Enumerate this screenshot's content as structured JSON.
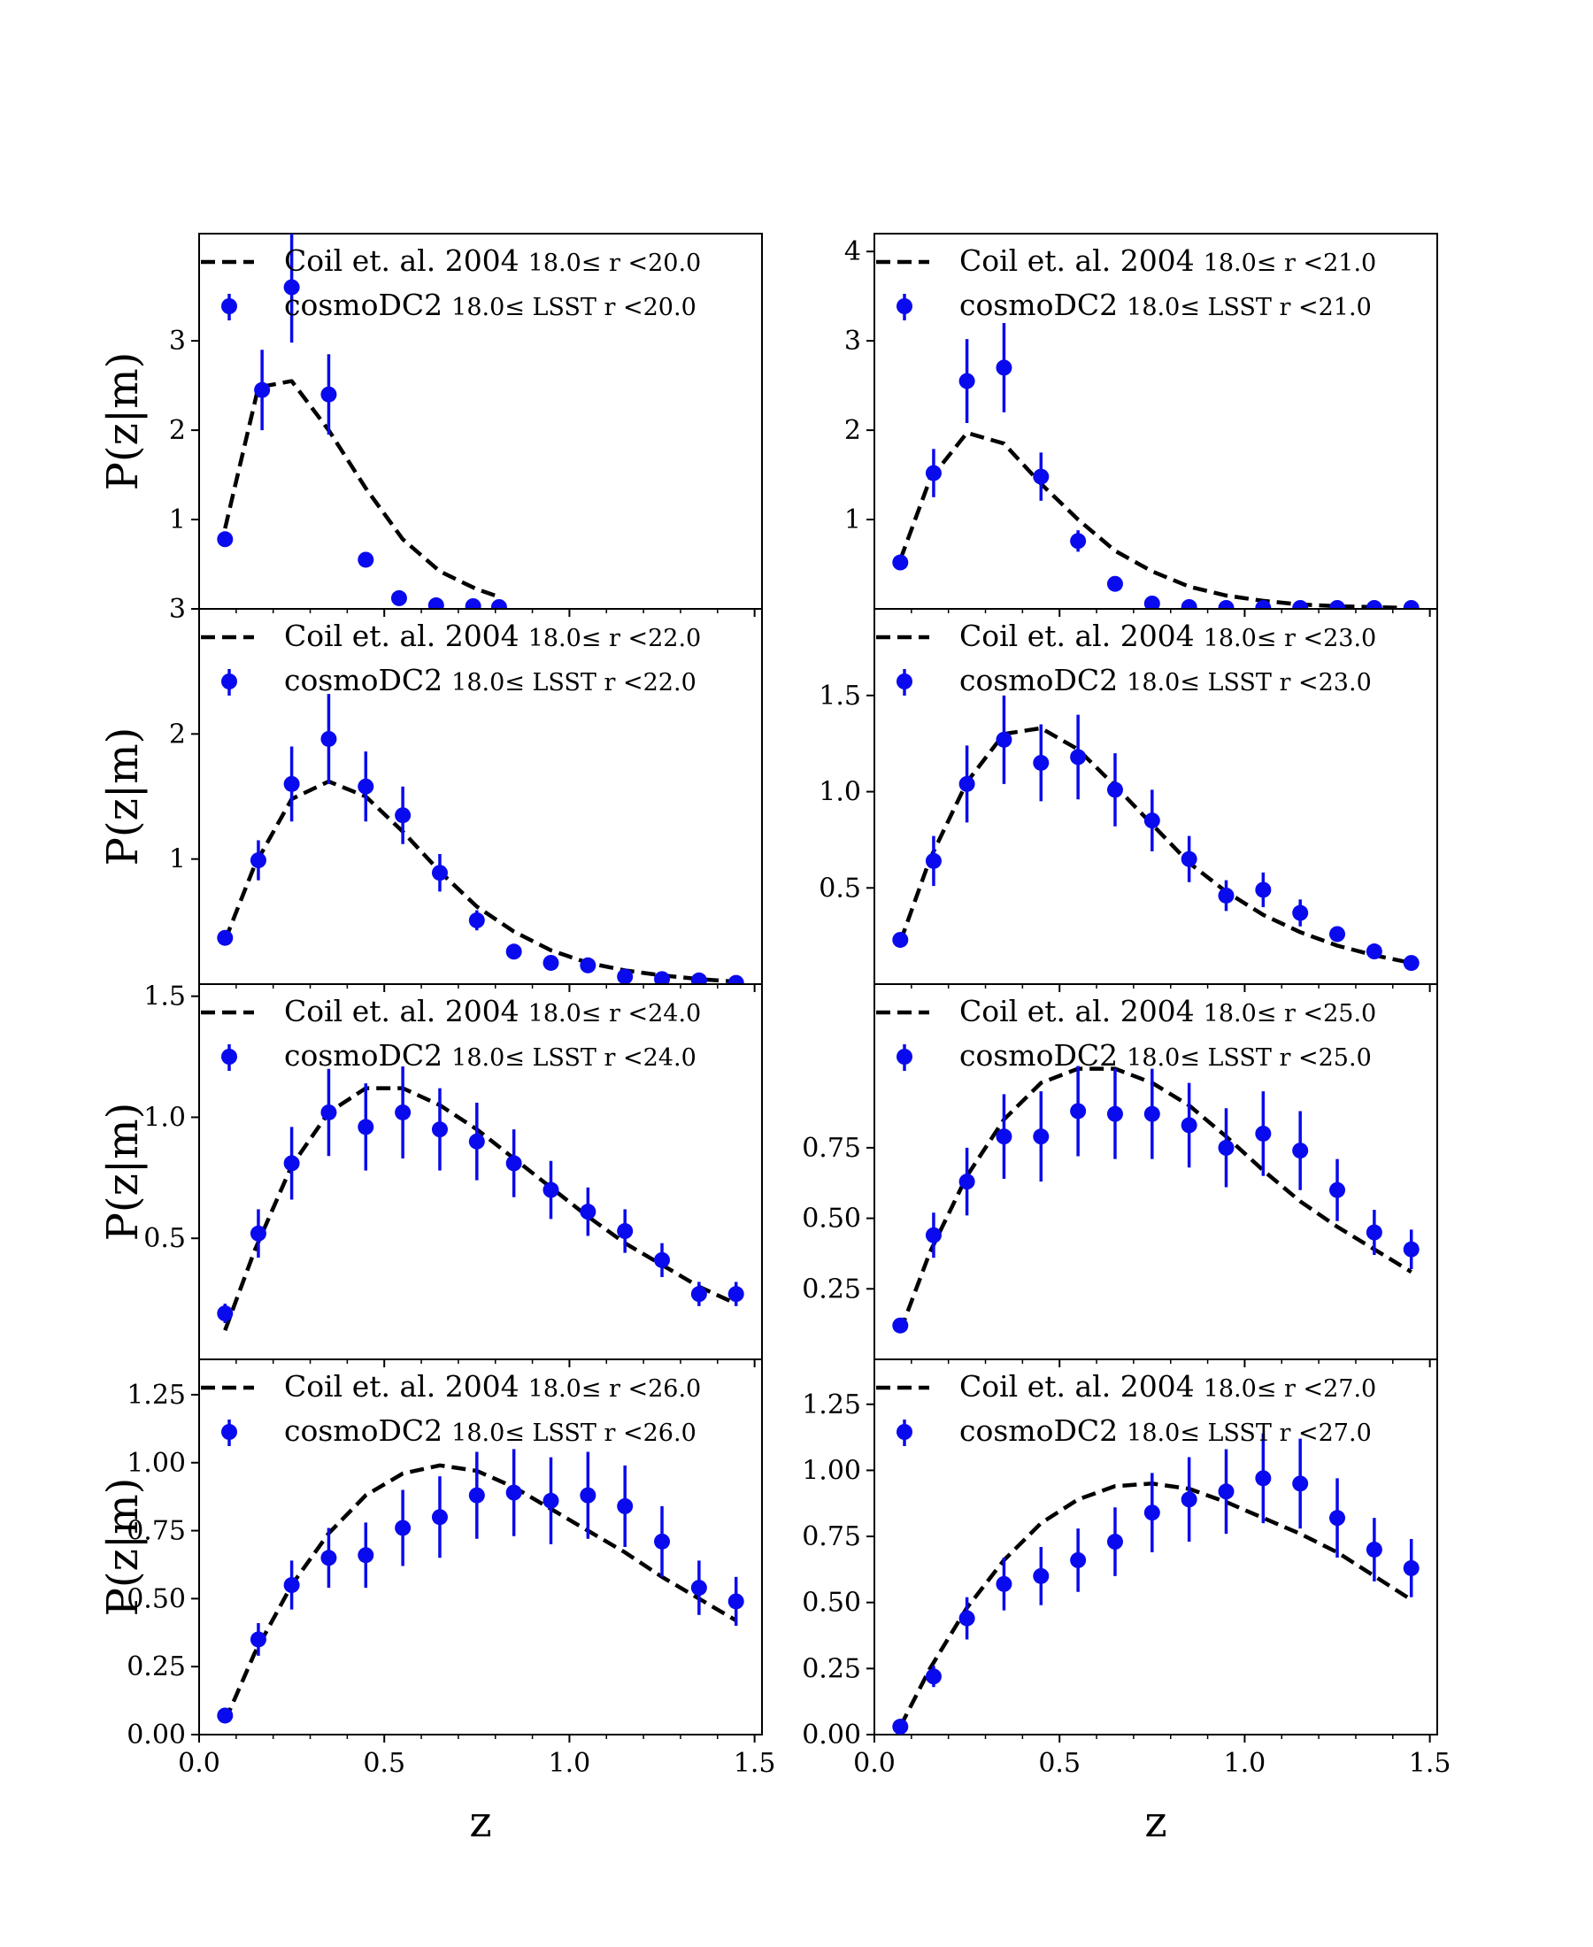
{
  "colors": {
    "model": "#000000",
    "data": "#0a0aee"
  },
  "chart_data": [
    {
      "type": "line+errorbar",
      "ylabel": "P(z|m)",
      "xlabel": "",
      "xlim": [
        0.0,
        1.52
      ],
      "ylim": [
        0.0,
        4.2
      ],
      "yticks": [
        1,
        2,
        3
      ],
      "yticks_text": [
        "1",
        "2",
        "3"
      ],
      "xticks_text": [
        "",
        "",
        "",
        ""
      ],
      "legend": {
        "line_main": "Coil et. al. 2004",
        "line_cut": "18.0≤ r <20.0",
        "points_main": "cosmoDC2",
        "points_cut": "18.0≤ LSST r <20.0"
      },
      "line": {
        "x": [
          0.07,
          0.16,
          0.25,
          0.35,
          0.45,
          0.55,
          0.65,
          0.75,
          0.8
        ],
        "y": [
          0.9,
          2.48,
          2.55,
          2.0,
          1.35,
          0.78,
          0.42,
          0.22,
          0.15
        ]
      },
      "points": {
        "x": [
          0.07,
          0.17,
          0.25,
          0.35,
          0.45,
          0.54,
          0.64,
          0.74,
          0.81
        ],
        "y": [
          0.78,
          2.45,
          3.6,
          2.4,
          0.55,
          0.12,
          0.04,
          0.03,
          0.02
        ],
        "err": [
          0.05,
          0.45,
          0.62,
          0.45,
          0.05,
          0.02,
          0.01,
          0.01,
          0.01
        ]
      }
    },
    {
      "type": "line+errorbar",
      "ylabel": "",
      "xlabel": "",
      "xlim": [
        0.0,
        1.52
      ],
      "ylim": [
        0.0,
        4.2
      ],
      "yticks": [
        1,
        2,
        3,
        4
      ],
      "yticks_text": [
        "1",
        "2",
        "3",
        "4"
      ],
      "xticks_text": [
        "",
        "",
        "",
        ""
      ],
      "legend": {
        "line_main": "Coil et. al. 2004",
        "line_cut": "18.0≤ r <21.0",
        "points_main": "cosmoDC2",
        "points_cut": "18.0≤ LSST r <21.0"
      },
      "line": {
        "x": [
          0.07,
          0.15,
          0.25,
          0.35,
          0.45,
          0.55,
          0.65,
          0.75,
          0.85,
          0.95,
          1.05,
          1.15,
          1.25,
          1.35,
          1.45
        ],
        "y": [
          0.55,
          1.45,
          1.97,
          1.85,
          1.4,
          1.0,
          0.65,
          0.42,
          0.25,
          0.15,
          0.09,
          0.05,
          0.03,
          0.02,
          0.01
        ]
      },
      "points": {
        "x": [
          0.07,
          0.16,
          0.25,
          0.35,
          0.45,
          0.55,
          0.65,
          0.75,
          0.85,
          0.95,
          1.05,
          1.15,
          1.25,
          1.35,
          1.45
        ],
        "y": [
          0.52,
          1.52,
          2.55,
          2.7,
          1.48,
          0.76,
          0.28,
          0.06,
          0.02,
          0.01,
          0.01,
          0.01,
          0.01,
          0.01,
          0.01
        ],
        "err": [
          0.07,
          0.27,
          0.47,
          0.5,
          0.27,
          0.12,
          0.03,
          0.01,
          0.01,
          0.0,
          0.0,
          0.0,
          0.0,
          0.0,
          0.0
        ]
      }
    },
    {
      "type": "line+errorbar",
      "ylabel": "P(z|m)",
      "xlabel": "",
      "xlim": [
        0.0,
        1.52
      ],
      "ylim": [
        0.0,
        3.0
      ],
      "yticks": [
        1,
        2,
        3
      ],
      "yticks_text": [
        "1",
        "2",
        "3"
      ],
      "xticks_text": [
        "",
        "",
        "",
        ""
      ],
      "legend": {
        "line_main": "Coil et. al. 2004",
        "line_cut": "18.0≤ r <22.0",
        "points_main": "cosmoDC2",
        "points_cut": "18.0≤ LSST r <22.0"
      },
      "line": {
        "x": [
          0.07,
          0.15,
          0.25,
          0.35,
          0.45,
          0.55,
          0.65,
          0.75,
          0.85,
          0.95,
          1.05,
          1.15,
          1.25,
          1.35,
          1.45
        ],
        "y": [
          0.35,
          0.95,
          1.48,
          1.62,
          1.5,
          1.22,
          0.9,
          0.62,
          0.42,
          0.27,
          0.17,
          0.11,
          0.07,
          0.04,
          0.02
        ]
      },
      "points": {
        "x": [
          0.07,
          0.16,
          0.25,
          0.35,
          0.45,
          0.55,
          0.65,
          0.75,
          0.85,
          0.95,
          1.05,
          1.15,
          1.25,
          1.35,
          1.45
        ],
        "y": [
          0.37,
          0.99,
          1.6,
          1.96,
          1.58,
          1.35,
          0.89,
          0.51,
          0.26,
          0.17,
          0.15,
          0.06,
          0.04,
          0.03,
          0.01
        ],
        "err": [
          0.05,
          0.16,
          0.3,
          0.36,
          0.28,
          0.23,
          0.15,
          0.08,
          0.03,
          0.02,
          0.02,
          0.01,
          0.01,
          0.01,
          0.0
        ]
      }
    },
    {
      "type": "line+errorbar",
      "ylabel": "",
      "xlabel": "",
      "xlim": [
        0.0,
        1.52
      ],
      "ylim": [
        0.0,
        1.95
      ],
      "yticks": [
        0.5,
        1.0,
        1.5
      ],
      "yticks_text": [
        "0.5",
        "1.0",
        "1.5"
      ],
      "xticks_text": [
        "",
        "",
        "",
        ""
      ],
      "legend": {
        "line_main": "Coil et. al. 2004",
        "line_cut": "18.0≤ r <23.0",
        "points_main": "cosmoDC2",
        "points_cut": "18.0≤ LSST r <23.0"
      },
      "line": {
        "x": [
          0.07,
          0.15,
          0.25,
          0.35,
          0.45,
          0.55,
          0.65,
          0.75,
          0.85,
          0.95,
          1.05,
          1.15,
          1.25,
          1.35,
          1.45
        ],
        "y": [
          0.22,
          0.65,
          1.05,
          1.3,
          1.33,
          1.22,
          1.03,
          0.83,
          0.63,
          0.48,
          0.36,
          0.27,
          0.2,
          0.15,
          0.11
        ]
      },
      "points": {
        "x": [
          0.07,
          0.16,
          0.25,
          0.35,
          0.45,
          0.55,
          0.65,
          0.75,
          0.85,
          0.95,
          1.05,
          1.15,
          1.25,
          1.35,
          1.45
        ],
        "y": [
          0.23,
          0.64,
          1.04,
          1.27,
          1.15,
          1.18,
          1.01,
          0.85,
          0.65,
          0.46,
          0.49,
          0.37,
          0.26,
          0.17,
          0.11
        ],
        "err": [
          0.04,
          0.13,
          0.2,
          0.23,
          0.2,
          0.22,
          0.19,
          0.16,
          0.12,
          0.08,
          0.09,
          0.07,
          0.04,
          0.03,
          0.02
        ]
      }
    },
    {
      "type": "line+errorbar",
      "ylabel": "P(z|m)",
      "xlabel": "",
      "xlim": [
        0.0,
        1.52
      ],
      "ylim": [
        0.0,
        1.55
      ],
      "yticks": [
        0.5,
        1.0,
        1.5
      ],
      "yticks_text": [
        "0.5",
        "1.0",
        "1.5"
      ],
      "xticks_text": [
        "",
        "",
        "",
        ""
      ],
      "legend": {
        "line_main": "Coil et. al. 2004",
        "line_cut": "18.0≤ r <24.0",
        "points_main": "cosmoDC2",
        "points_cut": "18.0≤ LSST r <24.0"
      },
      "line": {
        "x": [
          0.07,
          0.15,
          0.25,
          0.35,
          0.45,
          0.55,
          0.65,
          0.75,
          0.85,
          0.95,
          1.05,
          1.15,
          1.25,
          1.35,
          1.45
        ],
        "y": [
          0.12,
          0.45,
          0.8,
          1.02,
          1.12,
          1.12,
          1.05,
          0.95,
          0.83,
          0.71,
          0.59,
          0.48,
          0.39,
          0.3,
          0.23
        ]
      },
      "points": {
        "x": [
          0.07,
          0.16,
          0.25,
          0.35,
          0.45,
          0.55,
          0.65,
          0.75,
          0.85,
          0.95,
          1.05,
          1.15,
          1.25,
          1.35,
          1.45
        ],
        "y": [
          0.19,
          0.52,
          0.81,
          1.02,
          0.96,
          1.02,
          0.95,
          0.9,
          0.81,
          0.7,
          0.61,
          0.53,
          0.41,
          0.27,
          0.27
        ],
        "err": [
          0.04,
          0.1,
          0.15,
          0.18,
          0.18,
          0.19,
          0.17,
          0.16,
          0.14,
          0.12,
          0.1,
          0.09,
          0.07,
          0.05,
          0.05
        ]
      }
    },
    {
      "type": "line+errorbar",
      "ylabel": "",
      "xlabel": "",
      "xlim": [
        0.0,
        1.52
      ],
      "ylim": [
        0.0,
        1.33
      ],
      "yticks": [
        0.25,
        0.5,
        0.75
      ],
      "yticks_text": [
        "0.25",
        "0.50",
        "0.75"
      ],
      "xticks_text": [
        "",
        "",
        "",
        ""
      ],
      "legend": {
        "line_main": "Coil et. al. 2004",
        "line_cut": "18.0≤ r <25.0",
        "points_main": "cosmoDC2",
        "points_cut": "18.0≤ LSST r <25.0"
      },
      "line": {
        "x": [
          0.07,
          0.15,
          0.25,
          0.35,
          0.45,
          0.55,
          0.65,
          0.75,
          0.85,
          0.95,
          1.05,
          1.15,
          1.25,
          1.35,
          1.45
        ],
        "y": [
          0.1,
          0.38,
          0.65,
          0.85,
          0.98,
          1.03,
          1.03,
          0.98,
          0.9,
          0.79,
          0.67,
          0.56,
          0.47,
          0.39,
          0.31
        ]
      },
      "points": {
        "x": [
          0.07,
          0.16,
          0.25,
          0.35,
          0.45,
          0.55,
          0.65,
          0.75,
          0.85,
          0.95,
          1.05,
          1.15,
          1.25,
          1.35,
          1.45
        ],
        "y": [
          0.12,
          0.44,
          0.63,
          0.79,
          0.79,
          0.88,
          0.87,
          0.87,
          0.83,
          0.75,
          0.8,
          0.74,
          0.6,
          0.45,
          0.39
        ],
        "err": [
          0.02,
          0.08,
          0.12,
          0.15,
          0.16,
          0.16,
          0.16,
          0.16,
          0.15,
          0.14,
          0.15,
          0.14,
          0.11,
          0.08,
          0.07
        ]
      }
    },
    {
      "type": "line+errorbar",
      "ylabel": "P(z|m)",
      "xlabel": "z",
      "xlim": [
        0.0,
        1.52
      ],
      "ylim": [
        0.0,
        1.38
      ],
      "yticks": [
        0.0,
        0.25,
        0.5,
        0.75,
        1.0,
        1.25
      ],
      "yticks_text": [
        "0.00",
        "0.25",
        "0.50",
        "0.75",
        "1.00",
        "1.25"
      ],
      "xticks_text": [
        "0.0",
        "0.5",
        "1.0",
        "1.5"
      ],
      "legend": {
        "line_main": "Coil et. al. 2004",
        "line_cut": "18.0≤ r <26.0",
        "points_main": "cosmoDC2",
        "points_cut": "18.0≤ LSST r <26.0"
      },
      "line": {
        "x": [
          0.07,
          0.15,
          0.25,
          0.35,
          0.45,
          0.55,
          0.65,
          0.75,
          0.85,
          0.95,
          1.05,
          1.15,
          1.25,
          1.35,
          1.45
        ],
        "y": [
          0.05,
          0.3,
          0.55,
          0.74,
          0.88,
          0.96,
          0.99,
          0.97,
          0.91,
          0.83,
          0.75,
          0.67,
          0.58,
          0.5,
          0.42
        ]
      },
      "points": {
        "x": [
          0.07,
          0.16,
          0.25,
          0.35,
          0.45,
          0.55,
          0.65,
          0.75,
          0.85,
          0.95,
          1.05,
          1.15,
          1.25,
          1.35,
          1.45
        ],
        "y": [
          0.07,
          0.35,
          0.55,
          0.65,
          0.66,
          0.76,
          0.8,
          0.88,
          0.89,
          0.86,
          0.88,
          0.84,
          0.71,
          0.54,
          0.49
        ],
        "err": [
          0.01,
          0.06,
          0.09,
          0.11,
          0.12,
          0.14,
          0.15,
          0.16,
          0.16,
          0.16,
          0.16,
          0.15,
          0.13,
          0.1,
          0.09
        ]
      }
    },
    {
      "type": "line+errorbar",
      "ylabel": "",
      "xlabel": "z",
      "xlim": [
        0.0,
        1.52
      ],
      "ylim": [
        0.0,
        1.42
      ],
      "yticks": [
        0.0,
        0.25,
        0.5,
        0.75,
        1.0,
        1.25
      ],
      "yticks_text": [
        "0.00",
        "0.25",
        "0.50",
        "0.75",
        "1.00",
        "1.25"
      ],
      "xticks_text": [
        "0.0",
        "0.5",
        "1.0",
        "1.5"
      ],
      "legend": {
        "line_main": "Coil et. al. 2004",
        "line_cut": "18.0≤ r <27.0",
        "points_main": "cosmoDC2",
        "points_cut": "18.0≤ LSST r <27.0"
      },
      "line": {
        "x": [
          0.07,
          0.15,
          0.25,
          0.35,
          0.45,
          0.55,
          0.65,
          0.75,
          0.85,
          0.95,
          1.05,
          1.15,
          1.25,
          1.35,
          1.45
        ],
        "y": [
          0.03,
          0.25,
          0.48,
          0.66,
          0.8,
          0.89,
          0.94,
          0.95,
          0.93,
          0.88,
          0.82,
          0.76,
          0.69,
          0.6,
          0.51
        ]
      },
      "points": {
        "x": [
          0.07,
          0.16,
          0.25,
          0.35,
          0.45,
          0.55,
          0.65,
          0.75,
          0.85,
          0.95,
          1.05,
          1.15,
          1.25,
          1.35,
          1.45
        ],
        "y": [
          0.03,
          0.22,
          0.44,
          0.57,
          0.6,
          0.66,
          0.73,
          0.84,
          0.89,
          0.92,
          0.97,
          0.95,
          0.82,
          0.7,
          0.63
        ],
        "err": [
          0.01,
          0.04,
          0.08,
          0.1,
          0.11,
          0.12,
          0.13,
          0.15,
          0.16,
          0.16,
          0.17,
          0.17,
          0.15,
          0.12,
          0.11
        ]
      }
    }
  ]
}
